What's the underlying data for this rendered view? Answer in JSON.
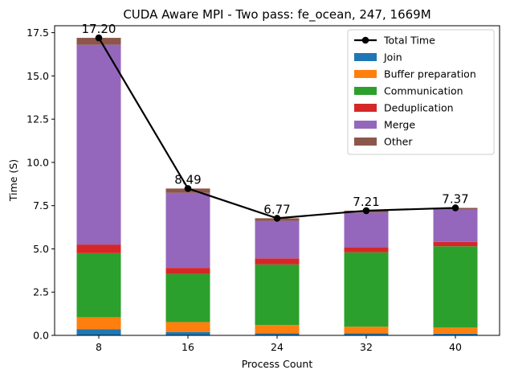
{
  "chart_data": {
    "type": "bar",
    "title": "CUDA Aware MPI - Two pass: fe_ocean, 247, 1669M",
    "xlabel": "Process Count",
    "ylabel": "Time (S)",
    "ylim": [
      0,
      17.9
    ],
    "yticks": [
      0.0,
      2.5,
      5.0,
      7.5,
      10.0,
      12.5,
      15.0,
      17.5
    ],
    "ytick_labels": [
      "0.0",
      "2.5",
      "5.0",
      "7.5",
      "10.0",
      "12.5",
      "15.0",
      "17.5"
    ],
    "categories": [
      "8",
      "16",
      "24",
      "32",
      "40"
    ],
    "stacked": true,
    "grid": false,
    "legend_position": "top-right",
    "series": [
      {
        "name": "Join",
        "color": "#1f77b4",
        "values": [
          0.35,
          0.2,
          0.12,
          0.12,
          0.1
        ]
      },
      {
        "name": "Buffer preparation",
        "color": "#ff7f0e",
        "values": [
          0.7,
          0.57,
          0.48,
          0.38,
          0.35
        ]
      },
      {
        "name": "Communication",
        "color": "#2ca02c",
        "values": [
          3.7,
          2.78,
          3.5,
          4.3,
          4.7
        ]
      },
      {
        "name": "Deduplication",
        "color": "#d62728",
        "values": [
          0.5,
          0.35,
          0.35,
          0.3,
          0.25
        ]
      },
      {
        "name": "Merge",
        "color": "#9467bd",
        "values": [
          11.55,
          4.34,
          2.17,
          2.0,
          1.87
        ]
      },
      {
        "name": "Other",
        "color": "#8c564b",
        "values": [
          0.4,
          0.25,
          0.15,
          0.11,
          0.1
        ]
      }
    ],
    "line_series": {
      "name": "Total Time",
      "color": "#000000",
      "values": [
        17.2,
        8.49,
        6.77,
        7.21,
        7.37
      ],
      "labels": [
        "17.20",
        "8.49",
        "6.77",
        "7.21",
        "7.37"
      ]
    }
  }
}
